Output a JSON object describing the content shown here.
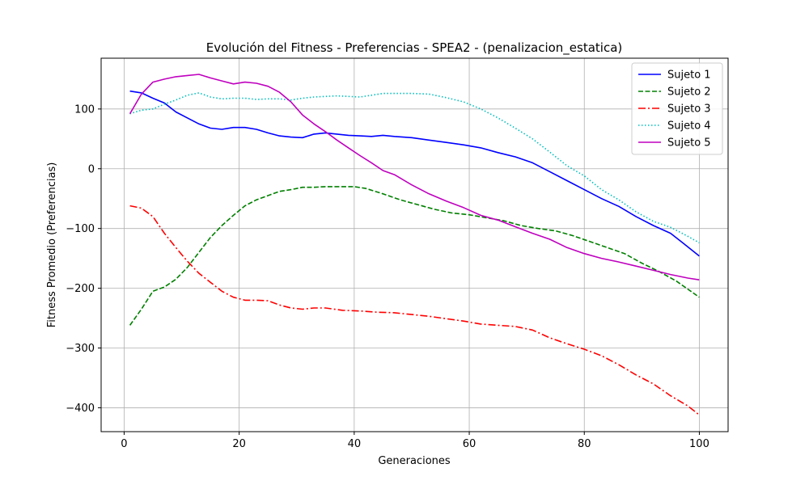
{
  "chart_data": {
    "type": "line",
    "title": "Evolución del Fitness - Preferencias - SPEA2 - (penalizacion_estatica)",
    "xlabel": "Generaciones",
    "ylabel": "Fitness Promedio (Preferencias)",
    "xlim": [
      -4,
      105
    ],
    "ylim": [
      -440,
      185
    ],
    "xticks": [
      0,
      20,
      40,
      60,
      80,
      100
    ],
    "yticks": [
      -400,
      -300,
      -200,
      -100,
      0,
      100
    ],
    "grid": true,
    "legend_position": "top-right",
    "series": [
      {
        "name": "Sujeto 1",
        "color": "#0000ff",
        "dash": "solid",
        "points": [
          [
            1,
            130
          ],
          [
            3,
            127
          ],
          [
            5,
            118
          ],
          [
            7,
            110
          ],
          [
            9,
            95
          ],
          [
            11,
            85
          ],
          [
            13,
            75
          ],
          [
            15,
            68
          ],
          [
            17,
            66
          ],
          [
            19,
            69
          ],
          [
            21,
            69
          ],
          [
            23,
            66
          ],
          [
            25,
            60
          ],
          [
            27,
            55
          ],
          [
            29,
            53
          ],
          [
            31,
            52
          ],
          [
            33,
            58
          ],
          [
            35,
            60
          ],
          [
            37,
            58
          ],
          [
            39,
            56
          ],
          [
            41,
            55
          ],
          [
            43,
            54
          ],
          [
            45,
            56
          ],
          [
            47,
            54
          ],
          [
            50,
            52
          ],
          [
            53,
            48
          ],
          [
            56,
            44
          ],
          [
            59,
            40
          ],
          [
            62,
            35
          ],
          [
            65,
            27
          ],
          [
            68,
            20
          ],
          [
            71,
            10
          ],
          [
            74,
            -5
          ],
          [
            77,
            -20
          ],
          [
            80,
            -35
          ],
          [
            83,
            -50
          ],
          [
            86,
            -63
          ],
          [
            89,
            -80
          ],
          [
            92,
            -95
          ],
          [
            95,
            -108
          ],
          [
            97,
            -123
          ],
          [
            100,
            -146
          ]
        ]
      },
      {
        "name": "Sujeto 2",
        "color": "#008000",
        "dash": "dashed",
        "points": [
          [
            1,
            -262
          ],
          [
            3,
            -235
          ],
          [
            5,
            -205
          ],
          [
            7,
            -198
          ],
          [
            9,
            -185
          ],
          [
            11,
            -165
          ],
          [
            13,
            -140
          ],
          [
            15,
            -115
          ],
          [
            17,
            -95
          ],
          [
            19,
            -78
          ],
          [
            21,
            -62
          ],
          [
            23,
            -52
          ],
          [
            25,
            -45
          ],
          [
            27,
            -38
          ],
          [
            29,
            -35
          ],
          [
            31,
            -31
          ],
          [
            33,
            -31
          ],
          [
            35,
            -30
          ],
          [
            37,
            -30
          ],
          [
            40,
            -30
          ],
          [
            42,
            -33
          ],
          [
            45,
            -42
          ],
          [
            48,
            -52
          ],
          [
            51,
            -60
          ],
          [
            54,
            -68
          ],
          [
            57,
            -74
          ],
          [
            60,
            -77
          ],
          [
            63,
            -82
          ],
          [
            66,
            -87
          ],
          [
            69,
            -95
          ],
          [
            72,
            -100
          ],
          [
            75,
            -104
          ],
          [
            78,
            -112
          ],
          [
            81,
            -122
          ],
          [
            84,
            -132
          ],
          [
            87,
            -142
          ],
          [
            90,
            -158
          ],
          [
            93,
            -172
          ],
          [
            96,
            -188
          ],
          [
            100,
            -215
          ]
        ]
      },
      {
        "name": "Sujeto 3",
        "color": "#ff0000",
        "dash": "dashdot",
        "points": [
          [
            1,
            -62
          ],
          [
            3,
            -66
          ],
          [
            5,
            -80
          ],
          [
            7,
            -108
          ],
          [
            9,
            -132
          ],
          [
            11,
            -155
          ],
          [
            13,
            -175
          ],
          [
            15,
            -190
          ],
          [
            17,
            -205
          ],
          [
            19,
            -215
          ],
          [
            21,
            -220
          ],
          [
            23,
            -220
          ],
          [
            25,
            -221
          ],
          [
            27,
            -228
          ],
          [
            29,
            -233
          ],
          [
            31,
            -235
          ],
          [
            33,
            -233
          ],
          [
            35,
            -233
          ],
          [
            38,
            -237
          ],
          [
            41,
            -238
          ],
          [
            44,
            -240
          ],
          [
            47,
            -241
          ],
          [
            50,
            -244
          ],
          [
            53,
            -247
          ],
          [
            56,
            -251
          ],
          [
            59,
            -255
          ],
          [
            62,
            -260
          ],
          [
            65,
            -262
          ],
          [
            68,
            -264
          ],
          [
            71,
            -270
          ],
          [
            74,
            -283
          ],
          [
            77,
            -293
          ],
          [
            80,
            -302
          ],
          [
            83,
            -313
          ],
          [
            86,
            -328
          ],
          [
            89,
            -345
          ],
          [
            92,
            -360
          ],
          [
            95,
            -380
          ],
          [
            98,
            -397
          ],
          [
            100,
            -412
          ]
        ]
      },
      {
        "name": "Sujeto 4",
        "color": "#00bfbf",
        "dash": "dotted",
        "points": [
          [
            1,
            92
          ],
          [
            3,
            98
          ],
          [
            5,
            100
          ],
          [
            7,
            108
          ],
          [
            9,
            115
          ],
          [
            11,
            123
          ],
          [
            13,
            127
          ],
          [
            15,
            120
          ],
          [
            17,
            117
          ],
          [
            19,
            118
          ],
          [
            21,
            118
          ],
          [
            23,
            116
          ],
          [
            25,
            117
          ],
          [
            27,
            117
          ],
          [
            29,
            115
          ],
          [
            31,
            118
          ],
          [
            33,
            120
          ],
          [
            35,
            121
          ],
          [
            37,
            122
          ],
          [
            39,
            121
          ],
          [
            41,
            120
          ],
          [
            43,
            123
          ],
          [
            45,
            126
          ],
          [
            47,
            126
          ],
          [
            50,
            126
          ],
          [
            53,
            125
          ],
          [
            56,
            119
          ],
          [
            59,
            112
          ],
          [
            62,
            100
          ],
          [
            65,
            85
          ],
          [
            68,
            68
          ],
          [
            71,
            50
          ],
          [
            74,
            28
          ],
          [
            77,
            5
          ],
          [
            80,
            -12
          ],
          [
            83,
            -35
          ],
          [
            86,
            -52
          ],
          [
            89,
            -72
          ],
          [
            92,
            -88
          ],
          [
            95,
            -98
          ],
          [
            98,
            -113
          ],
          [
            100,
            -124
          ]
        ]
      },
      {
        "name": "Sujeto 5",
        "color": "#bf00bf",
        "dash": "solid",
        "points": [
          [
            1,
            92
          ],
          [
            3,
            125
          ],
          [
            5,
            145
          ],
          [
            7,
            150
          ],
          [
            9,
            154
          ],
          [
            11,
            156
          ],
          [
            13,
            158
          ],
          [
            15,
            152
          ],
          [
            17,
            147
          ],
          [
            19,
            142
          ],
          [
            21,
            145
          ],
          [
            23,
            143
          ],
          [
            25,
            138
          ],
          [
            27,
            128
          ],
          [
            29,
            112
          ],
          [
            31,
            90
          ],
          [
            33,
            75
          ],
          [
            35,
            62
          ],
          [
            37,
            48
          ],
          [
            39,
            35
          ],
          [
            41,
            22
          ],
          [
            43,
            10
          ],
          [
            45,
            -3
          ],
          [
            47,
            -10
          ],
          [
            50,
            -27
          ],
          [
            53,
            -42
          ],
          [
            56,
            -54
          ],
          [
            59,
            -65
          ],
          [
            62,
            -78
          ],
          [
            65,
            -86
          ],
          [
            68,
            -97
          ],
          [
            71,
            -108
          ],
          [
            74,
            -118
          ],
          [
            77,
            -132
          ],
          [
            80,
            -142
          ],
          [
            83,
            -150
          ],
          [
            86,
            -156
          ],
          [
            89,
            -163
          ],
          [
            92,
            -170
          ],
          [
            95,
            -177
          ],
          [
            98,
            -183
          ],
          [
            100,
            -186
          ]
        ]
      }
    ]
  }
}
